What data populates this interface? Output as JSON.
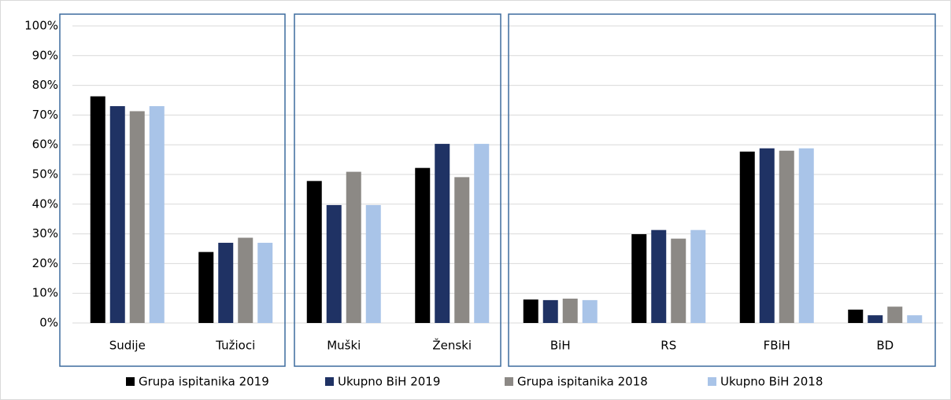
{
  "chart_data": {
    "type": "bar",
    "categories": [
      "Sudije",
      "Tužioci",
      "Muški",
      "Ženski",
      "BiH",
      "RS",
      "FBiH",
      "BD"
    ],
    "series": [
      {
        "name": "Grupa ispitanika 2019",
        "color": "#000000",
        "values": [
          76.3,
          23.9,
          47.8,
          52.2,
          7.9,
          29.9,
          57.7,
          4.5
        ]
      },
      {
        "name": "Ukupno BiH 2019",
        "color": "#1f3264",
        "values": [
          73,
          27,
          39.7,
          60.3,
          7.7,
          31.3,
          58.8,
          2.6
        ]
      },
      {
        "name": "Grupa ispitanika 2018",
        "color": "#8c8985",
        "values": [
          71.3,
          28.7,
          50.9,
          49.1,
          8.2,
          28.4,
          58,
          5.5
        ]
      },
      {
        "name": "Ukupno BiH 2018",
        "color": "#a9c4e8",
        "values": [
          73,
          27,
          39.7,
          60.3,
          7.7,
          31.3,
          58.8,
          2.6
        ]
      }
    ],
    "ylim": [
      0,
      100
    ],
    "yticks": [
      {
        "value": 0,
        "label": "0%"
      },
      {
        "value": 10,
        "label": "10%"
      },
      {
        "value": 20,
        "label": "20%"
      },
      {
        "value": 30,
        "label": "30%"
      },
      {
        "value": 40,
        "label": "40%"
      },
      {
        "value": 50,
        "label": "50%"
      },
      {
        "value": 60,
        "label": "60%"
      },
      {
        "value": 70,
        "label": "70%"
      },
      {
        "value": 80,
        "label": "80%"
      },
      {
        "value": 90,
        "label": "90%"
      },
      {
        "value": 100,
        "label": "100%"
      }
    ],
    "grid": true,
    "legend": "bottom"
  }
}
